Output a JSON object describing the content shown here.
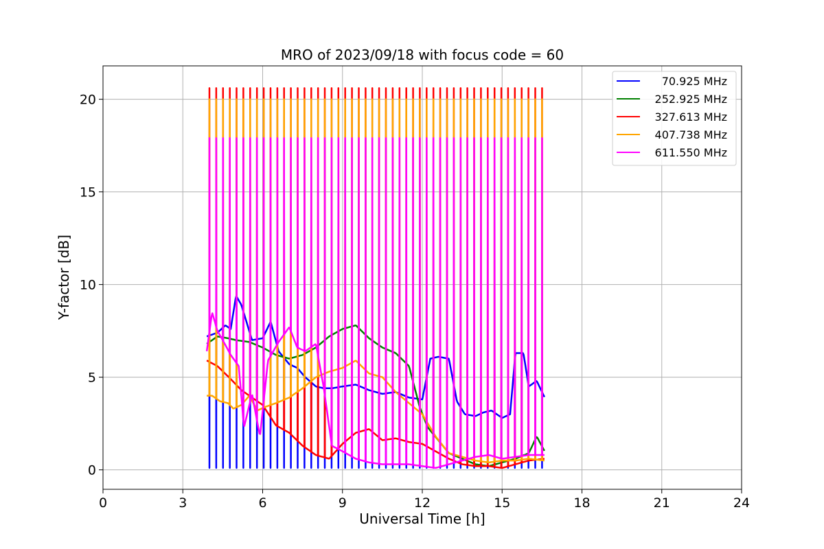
{
  "chart_data": {
    "type": "line",
    "title": "MRO of 2023/09/18 with focus code = 60",
    "xlabel": "Universal Time [h]",
    "ylabel": "Y-factor [dB]",
    "xlim": [
      0,
      24
    ],
    "ylim": [
      -1.05,
      21.8
    ],
    "xticks": [
      0,
      3,
      6,
      9,
      12,
      15,
      18,
      21,
      24
    ],
    "yticks": [
      0,
      5,
      10,
      15,
      20
    ],
    "grid": true,
    "legend_position": "top-right",
    "spikes": {
      "start_h": 4.0,
      "end_h": 16.5,
      "count": 50,
      "peak_values": {
        "red": 20.6,
        "orange": 20.0,
        "magenta": 17.9
      },
      "low_values": {
        "blue": 0.1
      }
    },
    "series": [
      {
        "name": "70.925 MHz",
        "color": "#0000ff",
        "x": [
          3.9,
          4.3,
          4.6,
          4.8,
          5.0,
          5.2,
          5.6,
          6.0,
          6.3,
          6.6,
          7.0,
          7.3,
          7.6,
          8.0,
          8.3,
          8.6,
          9.0,
          9.5,
          10.0,
          10.5,
          11.0,
          11.5,
          12.0,
          12.3,
          12.6,
          13.0,
          13.3,
          13.6,
          14.0,
          14.3,
          14.6,
          15.0,
          15.3,
          15.5,
          15.8,
          16.0,
          16.3,
          16.6
        ],
        "y": [
          7.2,
          7.4,
          7.8,
          7.6,
          9.4,
          8.9,
          7.0,
          7.1,
          8.0,
          6.4,
          5.7,
          5.5,
          5.0,
          4.5,
          4.4,
          4.4,
          4.5,
          4.6,
          4.3,
          4.1,
          4.2,
          3.9,
          3.8,
          6.0,
          6.1,
          6.0,
          3.7,
          3.0,
          2.9,
          3.1,
          3.2,
          2.8,
          3.0,
          6.3,
          6.3,
          4.5,
          4.8,
          3.9
        ]
      },
      {
        "name": "252.925 MHz",
        "color": "#008000",
        "x": [
          3.9,
          4.3,
          4.7,
          5.0,
          5.5,
          6.0,
          6.5,
          7.0,
          7.5,
          8.0,
          8.5,
          9.0,
          9.5,
          10.0,
          10.5,
          11.0,
          11.5,
          11.9,
          12.2,
          12.6,
          13.0,
          13.5,
          14.0,
          14.5,
          15.0,
          15.5,
          16.0,
          16.3,
          16.6
        ],
        "y": [
          6.8,
          7.2,
          7.1,
          7.0,
          6.9,
          6.6,
          6.2,
          6.0,
          6.2,
          6.6,
          7.2,
          7.6,
          7.8,
          7.1,
          6.6,
          6.3,
          5.6,
          3.4,
          2.3,
          1.6,
          0.9,
          0.6,
          0.3,
          0.2,
          0.4,
          0.6,
          0.9,
          1.8,
          1.0
        ]
      },
      {
        "name": "327.613 MHz",
        "color": "#ff0000",
        "x": [
          3.9,
          4.3,
          4.8,
          5.2,
          5.6,
          6.0,
          6.5,
          7.0,
          7.5,
          8.0,
          8.5,
          9.0,
          9.5,
          10.0,
          10.5,
          11.0,
          11.5,
          12.0,
          12.5,
          13.0,
          13.5,
          14.0,
          14.5,
          15.0,
          15.5,
          16.0,
          16.6
        ],
        "y": [
          5.9,
          5.6,
          4.9,
          4.3,
          3.9,
          3.5,
          2.4,
          2.0,
          1.3,
          0.8,
          0.6,
          1.4,
          2.0,
          2.2,
          1.6,
          1.7,
          1.5,
          1.4,
          1.0,
          0.6,
          0.3,
          0.2,
          0.2,
          0.1,
          0.3,
          0.5,
          0.6
        ]
      },
      {
        "name": "407.738 MHz",
        "color": "#ffa500",
        "x": [
          3.9,
          4.1,
          4.4,
          4.7,
          4.9,
          5.2,
          5.5,
          5.8,
          6.1,
          6.5,
          7.0,
          7.5,
          8.0,
          8.5,
          9.0,
          9.5,
          10.0,
          10.5,
          11.0,
          11.5,
          12.0,
          12.5,
          13.0,
          13.5,
          14.0,
          14.5,
          15.0,
          15.5,
          16.0,
          16.6
        ],
        "y": [
          4.0,
          4.0,
          3.7,
          3.6,
          3.3,
          3.5,
          4.0,
          3.2,
          3.4,
          3.6,
          3.9,
          4.4,
          5.0,
          5.3,
          5.5,
          5.9,
          5.2,
          5.0,
          4.2,
          3.6,
          3.0,
          1.8,
          0.9,
          0.7,
          0.5,
          0.4,
          0.5,
          0.5,
          0.6,
          0.5
        ]
      },
      {
        "name": "611.550 MHz",
        "color": "#ff00ff",
        "x": [
          3.9,
          4.1,
          4.3,
          4.5,
          4.8,
          5.1,
          5.3,
          5.6,
          5.9,
          6.2,
          6.6,
          7.0,
          7.3,
          7.6,
          8.0,
          8.3,
          8.6,
          9.0,
          9.5,
          10.0,
          10.5,
          11.0,
          11.5,
          12.0,
          12.5,
          13.0,
          13.5,
          14.0,
          14.5,
          15.0,
          15.5,
          16.0,
          16.6
        ],
        "y": [
          6.4,
          8.5,
          7.5,
          7.0,
          6.2,
          5.6,
          2.3,
          4.1,
          1.8,
          5.9,
          6.9,
          7.7,
          6.6,
          6.4,
          6.8,
          4.4,
          1.3,
          1.0,
          0.6,
          0.4,
          0.3,
          0.3,
          0.3,
          0.2,
          0.1,
          0.3,
          0.5,
          0.7,
          0.8,
          0.6,
          0.7,
          0.8,
          0.8
        ]
      }
    ]
  }
}
